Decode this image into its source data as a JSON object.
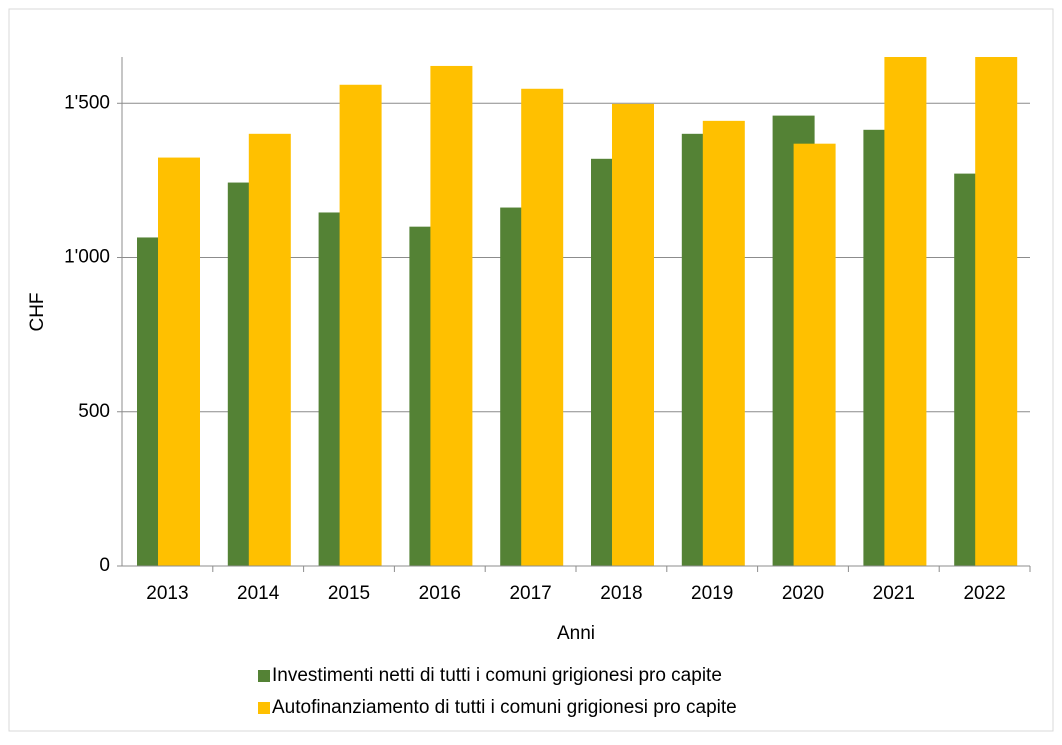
{
  "chart_data": {
    "type": "bar",
    "categories": [
      "2013",
      "2014",
      "2015",
      "2016",
      "2017",
      "2018",
      "2019",
      "2020",
      "2021",
      "2022"
    ],
    "series": [
      {
        "name": "Investimenti netti di tutti i comuni grigionesi pro capite",
        "color": "#548235",
        "values": [
          1065,
          1243,
          1146,
          1100,
          1162,
          1320,
          1401,
          1460,
          1414,
          1272
        ]
      },
      {
        "name": "Autofinanziamento di tutti i comuni grigionesi pro capite",
        "color": "#ffc000",
        "values": [
          1324,
          1401,
          1560,
          1621,
          1547,
          1498,
          1443,
          1369,
          1650,
          1650
        ]
      }
    ],
    "xlabel": "Anni",
    "ylabel": "CHF",
    "ylim": [
      0,
      1650
    ],
    "yticks": [
      0,
      500,
      {
        "value": 1000,
        "label": "1'000"
      },
      {
        "value": 1500,
        "label": "1'500"
      }
    ],
    "grid": true
  }
}
